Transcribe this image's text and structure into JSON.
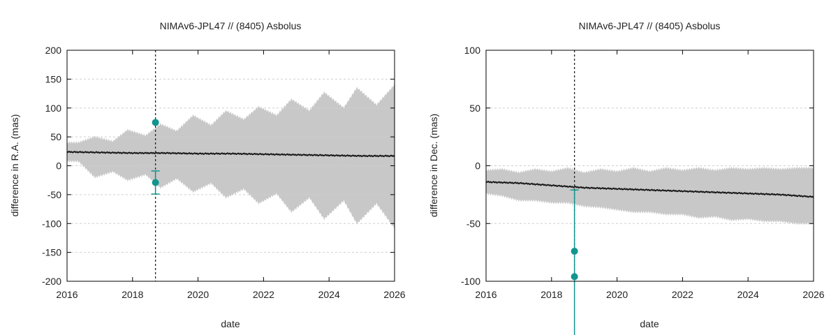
{
  "colors": {
    "band": "#c8c8c8",
    "line": "#1a1a1a",
    "points": "#12958f",
    "vline": "#222222",
    "grid": "#cfcfcf"
  },
  "chart_data": [
    {
      "type": "line",
      "title": "NIMAv6-JPL47 // (8405) Asbolus",
      "xlabel": "date",
      "ylabel": "difference in R.A. (mas)",
      "xlim": [
        2016,
        2026
      ],
      "ylim": [
        -200,
        200
      ],
      "xticks": [
        "2016",
        "2018",
        "2020",
        "2022",
        "2024",
        "2026"
      ],
      "yticks": [
        "200",
        "150",
        "100",
        "50",
        "0",
        "-50",
        "-100",
        "-150",
        "-200"
      ],
      "grid": true,
      "vline_x": 2018.7,
      "mean": {
        "x": [
          2016,
          2017,
          2018,
          2019,
          2020,
          2021,
          2022,
          2023,
          2024,
          2025,
          2026
        ],
        "y": [
          24,
          23,
          22,
          22,
          21,
          21,
          20,
          19,
          18,
          17,
          17
        ]
      },
      "band": {
        "x": [
          2016,
          2016.35,
          2016.85,
          2017.4,
          2017.85,
          2018.4,
          2018.85,
          2019.35,
          2019.85,
          2020.4,
          2020.85,
          2021.4,
          2021.85,
          2022.4,
          2022.85,
          2023.4,
          2023.85,
          2024.45,
          2024.85,
          2025.45,
          2026
        ],
        "upper": [
          40,
          40,
          50,
          42,
          62,
          52,
          72,
          60,
          87,
          70,
          95,
          80,
          102,
          87,
          115,
          95,
          127,
          100,
          135,
          105,
          140
        ],
        "lower": [
          8,
          8,
          -20,
          -10,
          -25,
          -15,
          -38,
          -22,
          -45,
          -30,
          -55,
          -40,
          -65,
          -48,
          -80,
          -55,
          -92,
          -60,
          -100,
          -65,
          -108
        ]
      },
      "points": [
        {
          "x": 2018.7,
          "y": 75,
          "err": 0
        },
        {
          "x": 2018.7,
          "y": -29,
          "err": 20
        }
      ]
    },
    {
      "type": "line",
      "title": "NIMAv6-JPL47 // (8405) Asbolus",
      "xlabel": "date",
      "ylabel": "difference in Dec. (mas)",
      "xlim": [
        2016,
        2026
      ],
      "ylim": [
        -100,
        100
      ],
      "xticks": [
        "2016",
        "2018",
        "2020",
        "2022",
        "2024",
        "2026"
      ],
      "yticks": [
        "100",
        "50",
        "0",
        "-50",
        "-100"
      ],
      "grid": true,
      "vline_x": 2018.7,
      "mean": {
        "x": [
          2016,
          2017,
          2018,
          2019,
          2020,
          2021,
          2022,
          2023,
          2024,
          2025,
          2026
        ],
        "y": [
          -14,
          -15,
          -17,
          -19,
          -20,
          -21,
          -22,
          -23,
          -24,
          -25,
          -27
        ]
      },
      "band": {
        "x": [
          2016,
          2016.5,
          2017,
          2017.5,
          2018,
          2018.5,
          2019,
          2019.5,
          2020,
          2020.5,
          2021,
          2021.5,
          2022,
          2022.5,
          2023,
          2023.5,
          2024,
          2024.5,
          2025,
          2025.5,
          2026
        ],
        "upper": [
          -4,
          -3,
          -6,
          -3,
          -5,
          -2,
          -6,
          -3,
          -5,
          -2,
          -5,
          -2,
          -4,
          -2,
          -4,
          -2,
          -3,
          -2,
          -3,
          -2,
          -2
        ],
        "lower": [
          -24,
          -26,
          -30,
          -30,
          -32,
          -32,
          -35,
          -36,
          -38,
          -40,
          -40,
          -42,
          -42,
          -45,
          -44,
          -47,
          -46,
          -48,
          -48,
          -50,
          -50
        ]
      },
      "points": [
        {
          "x": 2018.7,
          "y": -74,
          "err": 0
        },
        {
          "x": 2018.7,
          "y": -96,
          "err": 75
        }
      ]
    }
  ]
}
